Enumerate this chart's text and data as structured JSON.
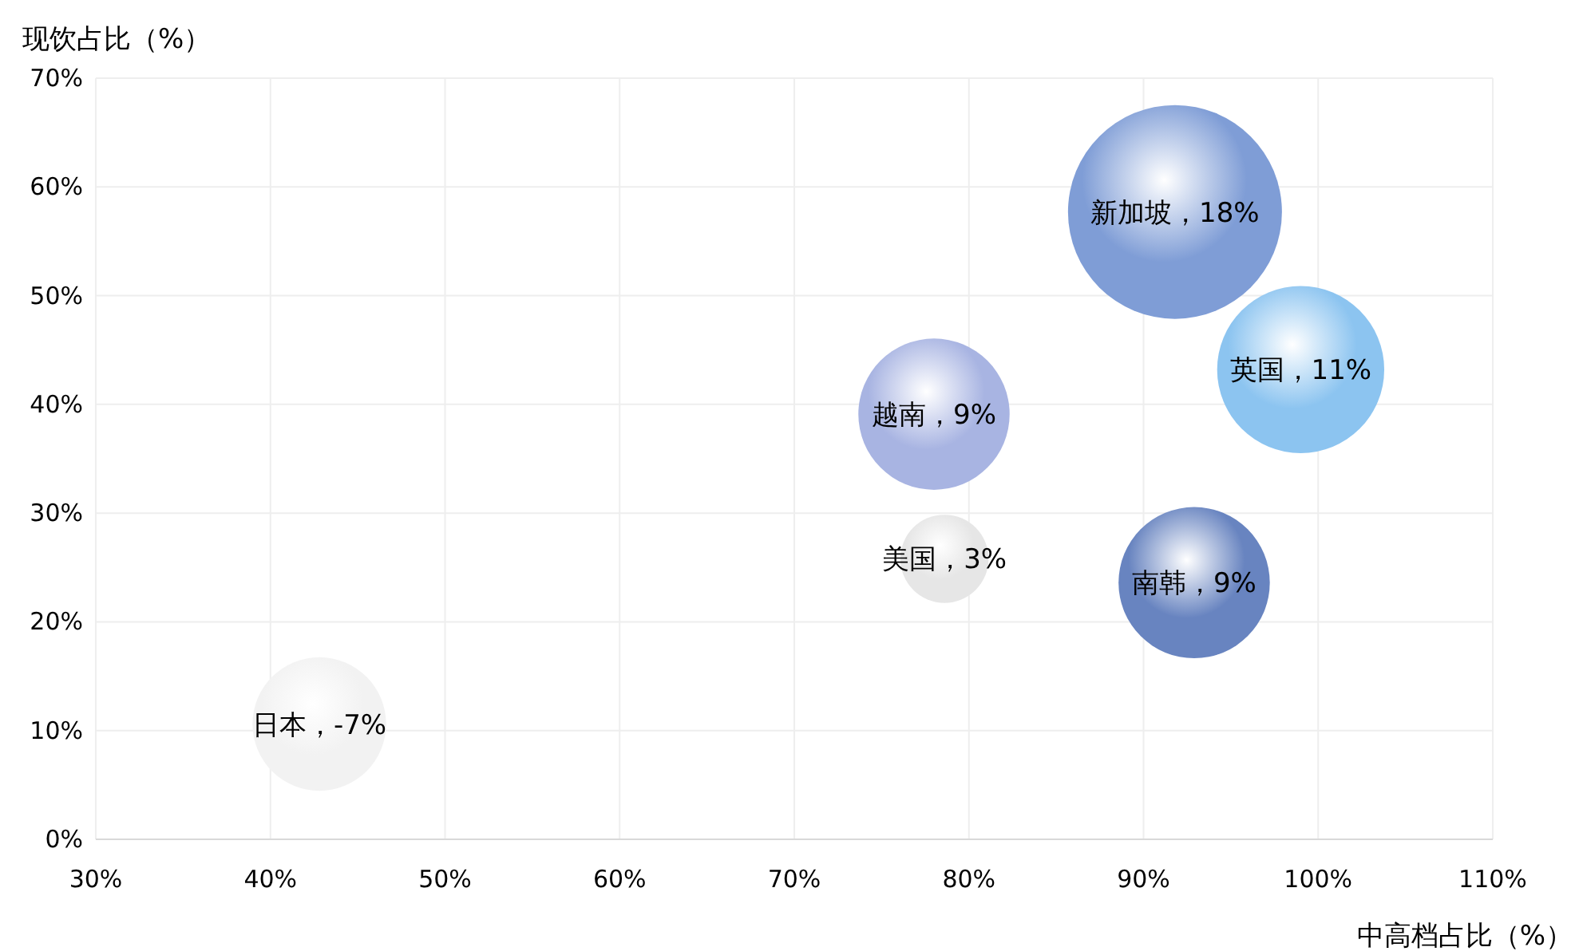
{
  "chart_data": {
    "type": "bubble",
    "xlabel": "中高档占比（%）",
    "ylabel": "现饮占比（%）",
    "x": [
      91.8,
      99,
      78,
      78.6,
      92.9,
      42.8
    ],
    "values": [
      57.7,
      43.2,
      39.1,
      25.8,
      23.6,
      10.6
    ],
    "sizes": [
      1,
      0.61,
      0.5,
      0.17,
      0.5,
      0.39
    ],
    "colors": [
      "#7f9dd6",
      "#8cc4f0",
      "#a8b4e2",
      "#e6e6e6",
      "#6884c0",
      "#f2f2f2"
    ],
    "annotations": [
      {
        "text": "新加坡，18%",
        "x": 91.8,
        "y": 57.7
      },
      {
        "text": "英国，11%",
        "x": 99,
        "y": 43.2
      },
      {
        "text": "越南，9%",
        "x": 78,
        "y": 39.1
      },
      {
        "text": "美国，3%",
        "x": 78.6,
        "y": 25.8
      },
      {
        "text": "南韩，9%",
        "x": 92.9,
        "y": 23.6
      },
      {
        "text": "日本，-7%",
        "x": 42.8,
        "y": 10.6
      }
    ],
    "xlim": [
      30,
      110
    ],
    "xticks": [
      {
        "value": 30,
        "label": "30%"
      },
      {
        "value": 40,
        "label": "40%"
      },
      {
        "value": 50,
        "label": "50%"
      },
      {
        "value": 60,
        "label": "60%"
      },
      {
        "value": 70,
        "label": "70%"
      },
      {
        "value": 80,
        "label": "80%"
      },
      {
        "value": 90,
        "label": "90%"
      },
      {
        "value": 100,
        "label": "100%"
      },
      {
        "value": 110,
        "label": "110%"
      }
    ],
    "ylim": [
      0,
      70
    ],
    "yticks": [
      {
        "value": 0,
        "label": "0%"
      },
      {
        "value": 10,
        "label": "10%"
      },
      {
        "value": 20,
        "label": "20%"
      },
      {
        "value": 30,
        "label": "30%"
      },
      {
        "value": 40,
        "label": "40%"
      },
      {
        "value": 50,
        "label": "50%"
      },
      {
        "value": 60,
        "label": "60%"
      },
      {
        "value": 70,
        "label": "70%"
      }
    ],
    "grid": true
  }
}
